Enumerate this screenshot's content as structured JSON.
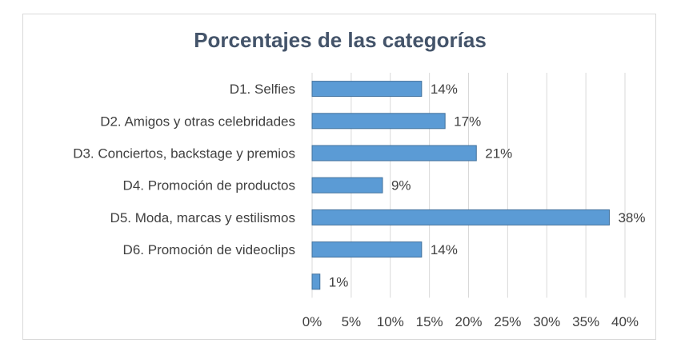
{
  "chart_data": {
    "type": "bar",
    "orientation": "horizontal",
    "title": "Porcentajes de las categorías",
    "categories": [
      "D1. Selfies",
      "D2. Amigos y otras celebridades",
      "D3. Conciertos, backstage y premios",
      "D4. Promoción de productos",
      "D5. Moda, marcas y estilismos",
      "D6. Promoción de videoclips",
      ""
    ],
    "values": [
      14,
      17,
      21,
      9,
      38,
      14,
      1
    ],
    "data_labels": [
      "14%",
      "17%",
      "21%",
      "9%",
      "38%",
      "14%",
      "1%"
    ],
    "xlim": [
      0,
      40
    ],
    "xticks": [
      0,
      5,
      10,
      15,
      20,
      25,
      30,
      35,
      40
    ],
    "xtick_labels": [
      "0%",
      "5%",
      "10%",
      "15%",
      "20%",
      "25%",
      "30%",
      "35%",
      "40%"
    ],
    "grid": true,
    "legend": "none",
    "colors": {
      "bar": "#5b9bd5",
      "bar_border": "#41719c",
      "grid": "#d9d9d9",
      "title": "#44546a",
      "text": "#404040"
    }
  }
}
